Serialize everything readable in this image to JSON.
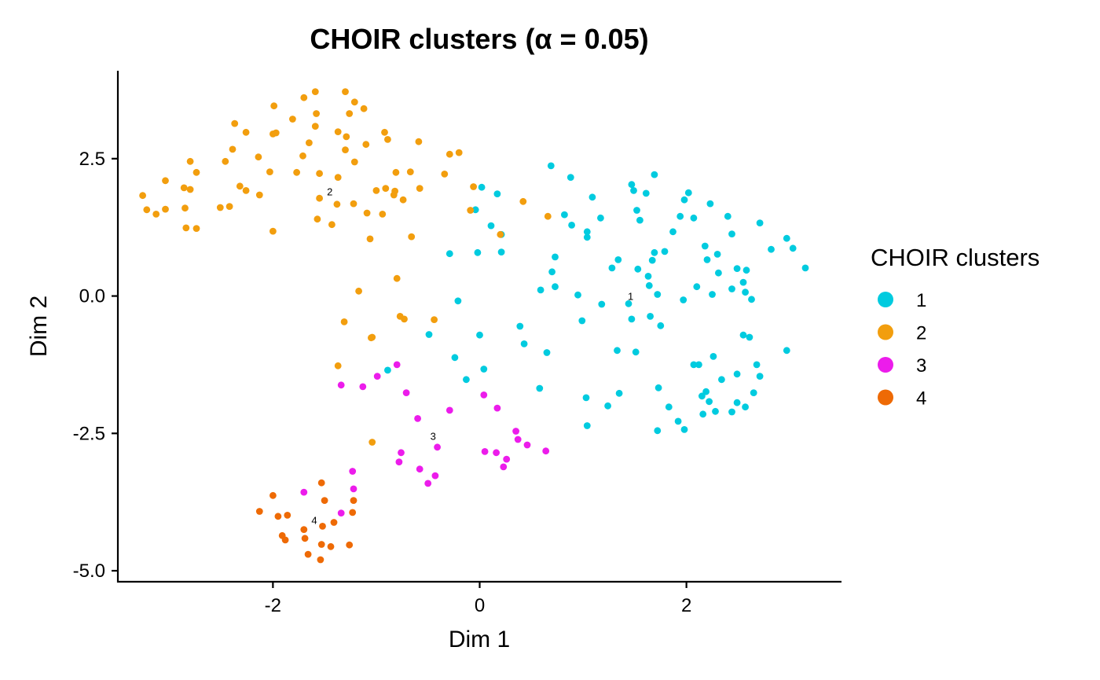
{
  "chart_data": {
    "type": "scatter",
    "title": "CHOIR clusters (α = 0.05)",
    "xlabel": "Dim 1",
    "ylabel": "Dim 2",
    "xlim": [
      -3.5,
      3.5
    ],
    "ylim": [
      -5.2,
      4.1
    ],
    "x_ticks": [
      {
        "value": -2,
        "label": "-2"
      },
      {
        "value": 0,
        "label": "0"
      },
      {
        "value": 2,
        "label": "2"
      }
    ],
    "y_ticks": [
      {
        "value": 2.5,
        "label": "2.5"
      },
      {
        "value": 0,
        "label": "0.0"
      },
      {
        "value": -2.5,
        "label": "-2.5"
      },
      {
        "value": -5,
        "label": "-5.0"
      }
    ],
    "grid": false,
    "legend": {
      "title": "CHOIR clusters",
      "position": "right",
      "entries": [
        {
          "label": "1",
          "color": "#00CBDF"
        },
        {
          "label": "2",
          "color": "#F29E0E"
        },
        {
          "label": "3",
          "color": "#EC1CEB"
        },
        {
          "label": "4",
          "color": "#EE6A05"
        }
      ]
    },
    "cluster_labels": [
      {
        "text": "1",
        "x": 1.46,
        "y": -0.07
      },
      {
        "text": "2",
        "x": -1.45,
        "y": 1.83
      },
      {
        "text": "3",
        "x": -0.45,
        "y": -2.62
      },
      {
        "text": "4",
        "x": -1.6,
        "y": -4.15
      }
    ],
    "series": [
      {
        "name": "1",
        "color": "#00CBDF",
        "points": [
          [
            0.69,
            2.37
          ],
          [
            0.88,
            2.16
          ],
          [
            1.47,
            2.03
          ],
          [
            1.69,
            2.21
          ],
          [
            1.49,
            1.92
          ],
          [
            1.61,
            1.87
          ],
          [
            2.02,
            1.88
          ],
          [
            1.98,
            1.75
          ],
          [
            2.23,
            1.68
          ],
          [
            1.09,
            1.8
          ],
          [
            0.02,
            1.98
          ],
          [
            0.17,
            1.86
          ],
          [
            -0.04,
            1.57
          ],
          [
            0.82,
            1.48
          ],
          [
            1.52,
            1.56
          ],
          [
            1.55,
            1.38
          ],
          [
            1.94,
            1.45
          ],
          [
            2.07,
            1.42
          ],
          [
            2.4,
            1.45
          ],
          [
            2.71,
            1.33
          ],
          [
            0.89,
            1.29
          ],
          [
            1.17,
            1.42
          ],
          [
            1.04,
            1.17
          ],
          [
            1.04,
            1.07
          ],
          [
            1.87,
            1.17
          ],
          [
            2.44,
            1.13
          ],
          [
            2.97,
            1.05
          ],
          [
            3.03,
            0.87
          ],
          [
            2.82,
            0.85
          ],
          [
            2.18,
            0.91
          ],
          [
            2.3,
            0.76
          ],
          [
            0.11,
            1.28
          ],
          [
            0.21,
            1.12
          ],
          [
            -0.29,
            0.77
          ],
          [
            -0.02,
            0.79
          ],
          [
            0.21,
            0.8
          ],
          [
            0.73,
            0.71
          ],
          [
            1.34,
            0.66
          ],
          [
            1.69,
            0.79
          ],
          [
            1.79,
            0.81
          ],
          [
            1.67,
            0.65
          ],
          [
            2.2,
            0.66
          ],
          [
            2.49,
            0.5
          ],
          [
            2.58,
            0.47
          ],
          [
            3.15,
            0.51
          ],
          [
            1.28,
            0.51
          ],
          [
            1.53,
            0.49
          ],
          [
            0.7,
            0.44
          ],
          [
            1.63,
            0.36
          ],
          [
            2.31,
            0.42
          ],
          [
            0.59,
            0.11
          ],
          [
            0.73,
            0.17
          ],
          [
            1.64,
            0.19
          ],
          [
            2.1,
            0.17
          ],
          [
            2.44,
            0.13
          ],
          [
            2.55,
            0.25
          ],
          [
            2.57,
            0.07
          ],
          [
            1.72,
            0.03
          ],
          [
            0.95,
            0.02
          ],
          [
            1.97,
            -0.07
          ],
          [
            2.25,
            0.03
          ],
          [
            2.63,
            -0.06
          ],
          [
            -0.21,
            -0.09
          ],
          [
            1.18,
            -0.15
          ],
          [
            1.44,
            -0.14
          ],
          [
            1.65,
            -0.37
          ],
          [
            1.47,
            -0.42
          ],
          [
            0.99,
            -0.45
          ],
          [
            1.75,
            -0.54
          ],
          [
            0.39,
            -0.55
          ],
          [
            0.0,
            -0.71
          ],
          [
            -0.49,
            -0.7
          ],
          [
            2.55,
            -0.71
          ],
          [
            2.61,
            -0.75
          ],
          [
            0.43,
            -0.87
          ],
          [
            1.33,
            -0.99
          ],
          [
            1.51,
            -1.02
          ],
          [
            0.65,
            -1.03
          ],
          [
            -0.24,
            -1.12
          ],
          [
            2.26,
            -1.1
          ],
          [
            2.07,
            -1.25
          ],
          [
            2.12,
            -1.25
          ],
          [
            2.68,
            -1.25
          ],
          [
            2.97,
            -0.99
          ],
          [
            2.71,
            -1.46
          ],
          [
            2.49,
            -1.42
          ],
          [
            0.04,
            -1.33
          ],
          [
            -0.89,
            -1.35
          ],
          [
            2.34,
            -1.52
          ],
          [
            -0.13,
            -1.52
          ],
          [
            0.58,
            -1.68
          ],
          [
            1.73,
            -1.67
          ],
          [
            2.65,
            -1.76
          ],
          [
            2.19,
            -1.74
          ],
          [
            2.15,
            -1.82
          ],
          [
            2.22,
            -1.92
          ],
          [
            1.35,
            -1.77
          ],
          [
            1.03,
            -1.85
          ],
          [
            2.49,
            -1.94
          ],
          [
            1.24,
            -2.0
          ],
          [
            1.83,
            -2.02
          ],
          [
            2.57,
            -2.02
          ],
          [
            2.28,
            -2.1
          ],
          [
            2.44,
            -2.11
          ],
          [
            2.16,
            -2.15
          ],
          [
            1.92,
            -2.28
          ],
          [
            1.04,
            -2.36
          ],
          [
            1.72,
            -2.45
          ],
          [
            1.98,
            -2.43
          ]
        ]
      },
      {
        "name": "2",
        "color": "#F29E0E",
        "points": [
          [
            -1.59,
            3.72
          ],
          [
            -1.3,
            3.72
          ],
          [
            -1.7,
            3.61
          ],
          [
            -1.21,
            3.53
          ],
          [
            -1.12,
            3.41
          ],
          [
            -1.99,
            3.46
          ],
          [
            -1.58,
            3.32
          ],
          [
            -1.26,
            3.32
          ],
          [
            -1.81,
            3.22
          ],
          [
            -2.37,
            3.14
          ],
          [
            -1.59,
            3.09
          ],
          [
            -1.37,
            2.99
          ],
          [
            -2.0,
            2.95
          ],
          [
            -1.97,
            2.97
          ],
          [
            -1.29,
            2.9
          ],
          [
            -0.92,
            2.98
          ],
          [
            -2.26,
            2.98
          ],
          [
            -0.59,
            2.81
          ],
          [
            -0.89,
            2.85
          ],
          [
            -1.65,
            2.79
          ],
          [
            -1.3,
            2.66
          ],
          [
            -2.39,
            2.67
          ],
          [
            -1.1,
            2.76
          ],
          [
            -0.29,
            2.58
          ],
          [
            -0.2,
            2.61
          ],
          [
            -2.14,
            2.53
          ],
          [
            -1.71,
            2.55
          ],
          [
            -1.21,
            2.44
          ],
          [
            -2.46,
            2.45
          ],
          [
            -2.8,
            2.45
          ],
          [
            -3.04,
            2.1
          ],
          [
            -2.03,
            2.26
          ],
          [
            -1.77,
            2.25
          ],
          [
            -1.55,
            2.23
          ],
          [
            -0.81,
            2.25
          ],
          [
            -0.67,
            2.26
          ],
          [
            -0.34,
            2.22
          ],
          [
            -2.74,
            2.25
          ],
          [
            -2.32,
            2.0
          ],
          [
            -2.26,
            1.92
          ],
          [
            -2.86,
            1.97
          ],
          [
            -2.8,
            1.94
          ],
          [
            -1.37,
            2.16
          ],
          [
            -1.0,
            1.92
          ],
          [
            -0.91,
            1.96
          ],
          [
            -0.83,
            1.84
          ],
          [
            -0.82,
            1.91
          ],
          [
            -0.74,
            1.75
          ],
          [
            -0.58,
            1.96
          ],
          [
            -0.06,
            1.99
          ],
          [
            -2.13,
            1.84
          ],
          [
            -1.55,
            1.78
          ],
          [
            -1.38,
            1.67
          ],
          [
            -1.22,
            1.68
          ],
          [
            -3.26,
            1.83
          ],
          [
            -3.22,
            1.57
          ],
          [
            -3.04,
            1.58
          ],
          [
            -3.13,
            1.49
          ],
          [
            -2.85,
            1.6
          ],
          [
            -2.51,
            1.61
          ],
          [
            -2.42,
            1.63
          ],
          [
            -1.09,
            1.51
          ],
          [
            -0.94,
            1.49
          ],
          [
            -1.57,
            1.4
          ],
          [
            -1.43,
            1.3
          ],
          [
            -2.84,
            1.24
          ],
          [
            -2.74,
            1.23
          ],
          [
            -2.0,
            1.18
          ],
          [
            -0.09,
            1.56
          ],
          [
            0.42,
            1.72
          ],
          [
            0.66,
            1.45
          ],
          [
            0.2,
            1.12
          ],
          [
            -0.66,
            1.08
          ],
          [
            -1.06,
            1.04
          ],
          [
            -0.8,
            0.32
          ],
          [
            -1.17,
            0.09
          ],
          [
            -0.77,
            -0.37
          ],
          [
            -0.73,
            -0.42
          ],
          [
            -0.44,
            -0.43
          ],
          [
            -1.31,
            -0.47
          ],
          [
            -1.04,
            -0.75
          ],
          [
            -1.05,
            -0.76
          ],
          [
            -1.37,
            -1.27
          ],
          [
            -1.04,
            -2.66
          ]
        ]
      },
      {
        "name": "3",
        "color": "#EC1CEB",
        "points": [
          [
            -1.34,
            -1.62
          ],
          [
            -1.13,
            -1.65
          ],
          [
            -0.99,
            -1.46
          ],
          [
            -0.8,
            -1.25
          ],
          [
            -0.71,
            -1.76
          ],
          [
            0.04,
            -1.8
          ],
          [
            -0.29,
            -2.08
          ],
          [
            0.17,
            -2.04
          ],
          [
            -0.6,
            -2.23
          ],
          [
            0.35,
            -2.46
          ],
          [
            0.37,
            -2.61
          ],
          [
            0.46,
            -2.71
          ],
          [
            0.64,
            -2.82
          ],
          [
            0.05,
            -2.83
          ],
          [
            0.16,
            -2.85
          ],
          [
            -0.41,
            -2.75
          ],
          [
            -0.76,
            -2.85
          ],
          [
            0.26,
            -2.97
          ],
          [
            -0.78,
            -3.02
          ],
          [
            0.23,
            -3.11
          ],
          [
            -0.58,
            -3.15
          ],
          [
            -0.43,
            -3.27
          ],
          [
            -0.5,
            -3.41
          ],
          [
            -1.23,
            -3.19
          ],
          [
            -1.22,
            -3.51
          ],
          [
            -1.7,
            -3.57
          ],
          [
            -1.34,
            -3.95
          ]
        ]
      },
      {
        "name": "4",
        "color": "#EE6A05",
        "points": [
          [
            -1.53,
            -3.4
          ],
          [
            -2.0,
            -3.63
          ],
          [
            -1.5,
            -3.72
          ],
          [
            -1.22,
            -3.72
          ],
          [
            -2.13,
            -3.92
          ],
          [
            -1.23,
            -3.94
          ],
          [
            -1.95,
            -4.01
          ],
          [
            -1.86,
            -3.99
          ],
          [
            -1.41,
            -4.12
          ],
          [
            -1.52,
            -4.19
          ],
          [
            -1.7,
            -4.25
          ],
          [
            -1.91,
            -4.36
          ],
          [
            -1.88,
            -4.44
          ],
          [
            -1.69,
            -4.41
          ],
          [
            -1.53,
            -4.52
          ],
          [
            -1.44,
            -4.56
          ],
          [
            -1.26,
            -4.53
          ],
          [
            -1.66,
            -4.7
          ],
          [
            -1.54,
            -4.8
          ]
        ]
      }
    ]
  }
}
